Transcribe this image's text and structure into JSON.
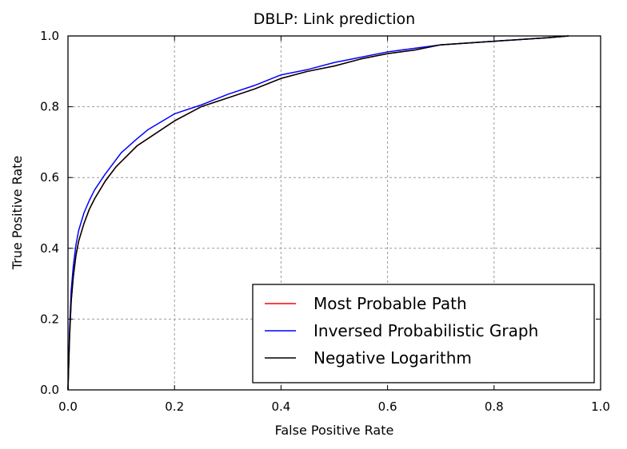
{
  "chart_data": {
    "type": "line",
    "title": "DBLP: Link prediction",
    "xlabel": "False Positive Rate",
    "ylabel": "True Positive Rate",
    "xlim": [
      0.0,
      1.0
    ],
    "ylim": [
      0.0,
      1.0
    ],
    "xticks": [
      "0.0",
      "0.2",
      "0.4",
      "0.6",
      "0.8",
      "1.0"
    ],
    "yticks": [
      "0.0",
      "0.2",
      "0.4",
      "0.6",
      "0.8",
      "1.0"
    ],
    "grid": true,
    "legend_position": "lower right",
    "series": [
      {
        "name": "Most Probable Path",
        "color": "#ff0000",
        "x": [
          0.0,
          0.003,
          0.006,
          0.01,
          0.015,
          0.02,
          0.03,
          0.04,
          0.05,
          0.07,
          0.09,
          0.1,
          0.13,
          0.15,
          0.2,
          0.25,
          0.3,
          0.35,
          0.4,
          0.45,
          0.5,
          0.55,
          0.6,
          0.65,
          0.7,
          0.8,
          0.9,
          0.94
        ],
        "y": [
          0.0,
          0.15,
          0.25,
          0.32,
          0.38,
          0.42,
          0.47,
          0.51,
          0.54,
          0.59,
          0.63,
          0.645,
          0.69,
          0.71,
          0.76,
          0.8,
          0.825,
          0.85,
          0.88,
          0.9,
          0.915,
          0.935,
          0.95,
          0.96,
          0.975,
          0.985,
          0.995,
          1.0
        ]
      },
      {
        "name": "Inversed Probabilistic Graph",
        "color": "#0000ff",
        "x": [
          0.0,
          0.003,
          0.006,
          0.01,
          0.015,
          0.02,
          0.03,
          0.04,
          0.05,
          0.07,
          0.09,
          0.1,
          0.13,
          0.15,
          0.2,
          0.25,
          0.3,
          0.35,
          0.4,
          0.45,
          0.5,
          0.55,
          0.6,
          0.65,
          0.7,
          0.8,
          0.9,
          0.94
        ],
        "y": [
          0.0,
          0.17,
          0.28,
          0.35,
          0.41,
          0.45,
          0.5,
          0.535,
          0.565,
          0.61,
          0.65,
          0.67,
          0.71,
          0.735,
          0.78,
          0.805,
          0.835,
          0.86,
          0.89,
          0.905,
          0.925,
          0.94,
          0.955,
          0.965,
          0.975,
          0.985,
          0.995,
          1.0
        ]
      },
      {
        "name": "Negative Logarithm",
        "color": "#000000",
        "x": [
          0.0,
          0.003,
          0.006,
          0.01,
          0.015,
          0.02,
          0.03,
          0.04,
          0.05,
          0.07,
          0.09,
          0.1,
          0.13,
          0.15,
          0.2,
          0.25,
          0.3,
          0.35,
          0.4,
          0.45,
          0.5,
          0.55,
          0.6,
          0.65,
          0.7,
          0.8,
          0.9,
          0.94
        ],
        "y": [
          0.0,
          0.15,
          0.25,
          0.32,
          0.38,
          0.42,
          0.47,
          0.51,
          0.54,
          0.59,
          0.63,
          0.645,
          0.69,
          0.71,
          0.76,
          0.8,
          0.825,
          0.85,
          0.88,
          0.9,
          0.915,
          0.935,
          0.95,
          0.96,
          0.975,
          0.985,
          0.995,
          1.0
        ]
      }
    ]
  }
}
